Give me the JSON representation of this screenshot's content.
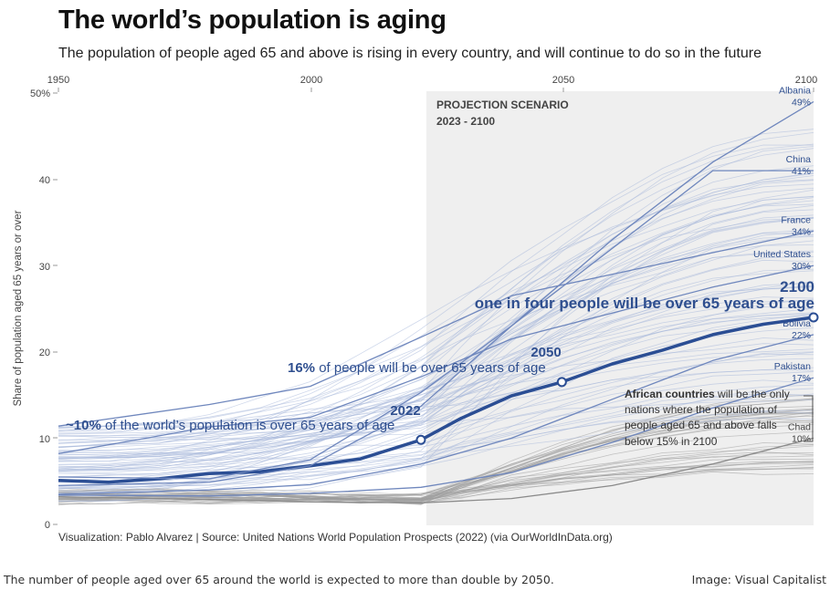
{
  "header": {
    "title": "The world’s population is aging",
    "subtitle": "The population of people aged 65 and above is rising in every country, and will continue to do so in the future"
  },
  "footer": {
    "source": "Visualization: Pablo Alvarez | Source: United Nations World Population Prospects (2022) (via OurWorldInData.org)",
    "caption": "The number of people aged over 65 around the world is expected to more than double by 2050.",
    "credit": "Image: Visual Capitalist"
  },
  "colors": {
    "world_line": "#2b4e94",
    "country_lines": "#9fb2d6",
    "africa_lines": "#9a9a9a",
    "projection_shade": "#efefef",
    "label_text": "#2f4f8f"
  },
  "chart_data": {
    "type": "line",
    "title": "The world’s population is aging",
    "subtitle": "The population of people aged 65 and above is rising in every country, and will continue to do so in the future",
    "xlabel": "",
    "ylabel": "Share of population aged 65 years or over",
    "xlim": [
      1950,
      2100
    ],
    "ylim": [
      0,
      50
    ],
    "x_ticks": [
      "1950",
      "2000",
      "2050",
      "2100"
    ],
    "y_ticks": [
      "50%",
      "40",
      "30",
      "20",
      "10",
      "0"
    ],
    "grid": false,
    "projection": {
      "label": "PROJECTION SCENARIO",
      "range_label": "2023 - 2100",
      "start": 2023,
      "end": 2100
    },
    "series": [
      {
        "name": "World",
        "x": [
          1950,
          1960,
          1970,
          1980,
          1990,
          2000,
          2010,
          2022,
          2030,
          2040,
          2050,
          2060,
          2070,
          2080,
          2090,
          2100
        ],
        "values": [
          5.1,
          4.9,
          5.3,
          5.9,
          6.1,
          6.8,
          7.6,
          9.8,
          12.3,
          14.9,
          16.5,
          18.6,
          20.2,
          22.0,
          23.2,
          24.0
        ]
      },
      {
        "name": "Albania",
        "x": [
          1950,
          1980,
          2000,
          2022,
          2040,
          2060,
          2080,
          2100
        ],
        "values": [
          5.5,
          5.3,
          7.5,
          15.3,
          23,
          33,
          42,
          49
        ]
      },
      {
        "name": "China",
        "x": [
          1950,
          1980,
          2000,
          2022,
          2040,
          2060,
          2080,
          2100
        ],
        "values": [
          4.5,
          4.9,
          6.8,
          13.7,
          23,
          32,
          41,
          41
        ]
      },
      {
        "name": "France",
        "x": [
          1950,
          1980,
          2000,
          2022,
          2040,
          2060,
          2080,
          2100
        ],
        "values": [
          11.4,
          13.9,
          16.0,
          21.7,
          26.5,
          29,
          31.5,
          34
        ]
      },
      {
        "name": "United States",
        "x": [
          1950,
          1980,
          2000,
          2022,
          2040,
          2060,
          2080,
          2100
        ],
        "values": [
          8.2,
          11.3,
          12.4,
          17.1,
          21.5,
          24.5,
          27.5,
          30
        ]
      },
      {
        "name": "Bolivia",
        "x": [
          1950,
          1980,
          2000,
          2022,
          2040,
          2060,
          2080,
          2100
        ],
        "values": [
          3.5,
          4.0,
          4.6,
          7.0,
          10,
          14.5,
          19,
          22
        ]
      },
      {
        "name": "Pakistan",
        "x": [
          1950,
          1980,
          2000,
          2022,
          2040,
          2060,
          2080,
          2100
        ],
        "values": [
          3.4,
          3.3,
          3.6,
          4.3,
          6,
          9.5,
          13.5,
          17
        ]
      },
      {
        "name": "Chad",
        "x": [
          1950,
          1980,
          2000,
          2022,
          2040,
          2060,
          2080,
          2100
        ],
        "values": [
          3.2,
          2.9,
          2.6,
          2.5,
          3,
          4.5,
          7,
          10
        ]
      }
    ],
    "annotations": {
      "a2022_year": "2022",
      "a2022_pre": "~10%",
      "a2022_post": " of the world’s population is over 65 years of age",
      "a2050_year": "2050",
      "a2050_pre": "16%",
      "a2050_post": " of people will be over 65 years of age",
      "a2100_year": "2100",
      "a2100_text": "one in four people will be over 65 years of age",
      "africa_bold": "African countries",
      "africa_l1": " will be the only",
      "africa_l2": "nations where the population of",
      "africa_l3": "people aged 65 and above falls",
      "africa_l4": "below 15% in 2100"
    },
    "end_labels": [
      {
        "name": "Albania",
        "value_label": "49%"
      },
      {
        "name": "China",
        "value_label": "41%"
      },
      {
        "name": "France",
        "value_label": "34%"
      },
      {
        "name": "United States",
        "value_label": "30%"
      },
      {
        "name": "Bolivia",
        "value_label": "22%"
      },
      {
        "name": "Pakistan",
        "value_label": "17%"
      },
      {
        "name": "Chad",
        "value_label": "10%"
      }
    ]
  }
}
